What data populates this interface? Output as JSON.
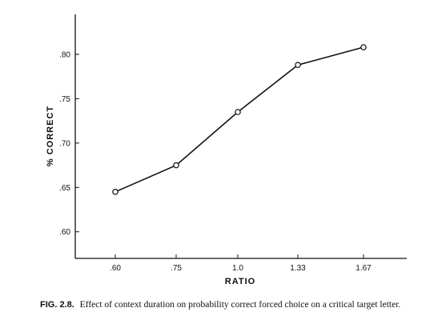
{
  "chart_data": {
    "type": "line",
    "categories": [
      ".60",
      ".75",
      "1.0",
      "1.33",
      "1.67"
    ],
    "series": [
      {
        "values": [
          0.645,
          0.675,
          0.735,
          0.788,
          0.808
        ]
      }
    ],
    "point_x": [
      0.6,
      0.75,
      1.0,
      1.33,
      1.67
    ],
    "xlabel": "RATIO",
    "ylabel": "% CORRECT",
    "yticks": [
      ".60",
      ".65",
      ".70",
      ".75",
      ".80"
    ],
    "ylim": [
      0.57,
      0.845
    ],
    "grid": false,
    "marker": "open-circle",
    "colors": {
      "line": "#111111",
      "axis": "#111111"
    }
  },
  "caption": {
    "figure_id": "FIG. 2.8.",
    "text": "Effect of context duration on probability correct forced choice on a critical target letter."
  }
}
